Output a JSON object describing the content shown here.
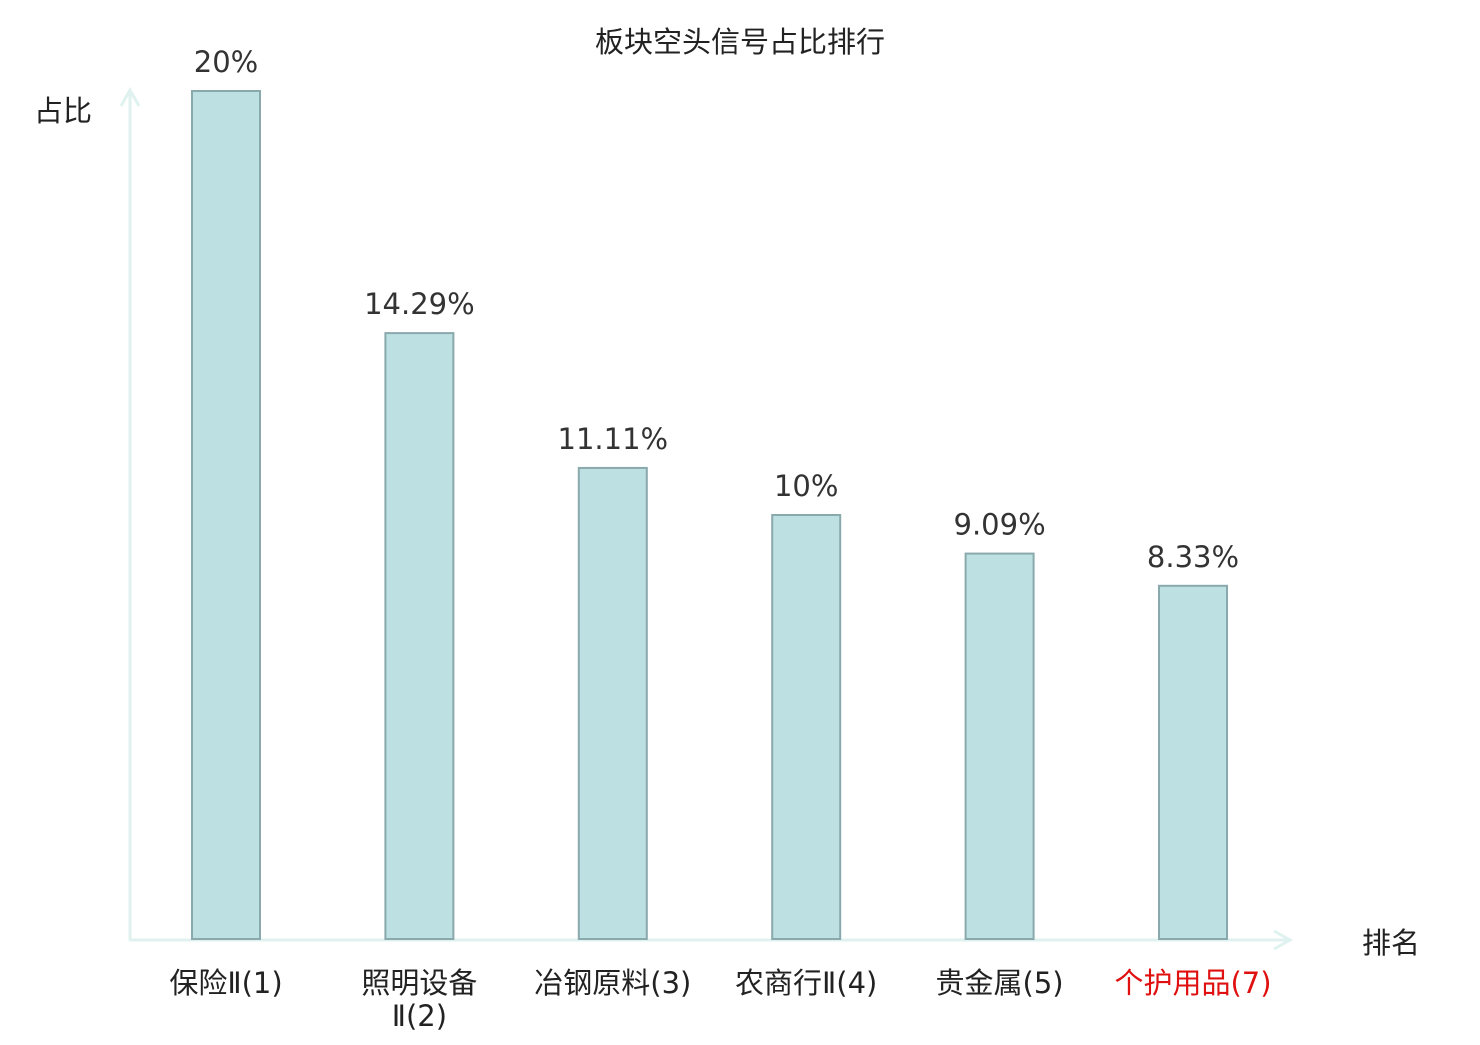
{
  "chart_data": {
    "type": "bar",
    "title": "板块空头信号占比排行",
    "ylabel": "占比",
    "xlabel": "排名",
    "categories": [
      "保险Ⅱ(1)",
      "照明设备Ⅱ(2)",
      "冶钢原料(3)",
      "农商行Ⅱ(4)",
      "贵金属(5)",
      "个护用品(7)"
    ],
    "category_lines": [
      [
        "保险Ⅱ(1)"
      ],
      [
        "照明设备",
        "Ⅱ(2)"
      ],
      [
        "冶钢原料(3)"
      ],
      [
        "农商行Ⅱ(4)"
      ],
      [
        "贵金属(5)"
      ],
      [
        "个护用品(7)"
      ]
    ],
    "values": [
      20,
      14.29,
      11.11,
      10,
      9.09,
      8.33
    ],
    "value_labels": [
      "20%",
      "14.29%",
      "11.11%",
      "10%",
      "9.09%",
      "8.33%"
    ],
    "highlight_category_index": 5,
    "ylim": [
      0,
      20
    ],
    "grid": false,
    "legend": "none"
  },
  "colors": {
    "bar_fill": "#bde0e3",
    "bar_stroke": "#8aa9ac",
    "axis": "#dff2ef",
    "text": "#222222",
    "value_label": "#333333",
    "highlight_label": "#e01010"
  }
}
